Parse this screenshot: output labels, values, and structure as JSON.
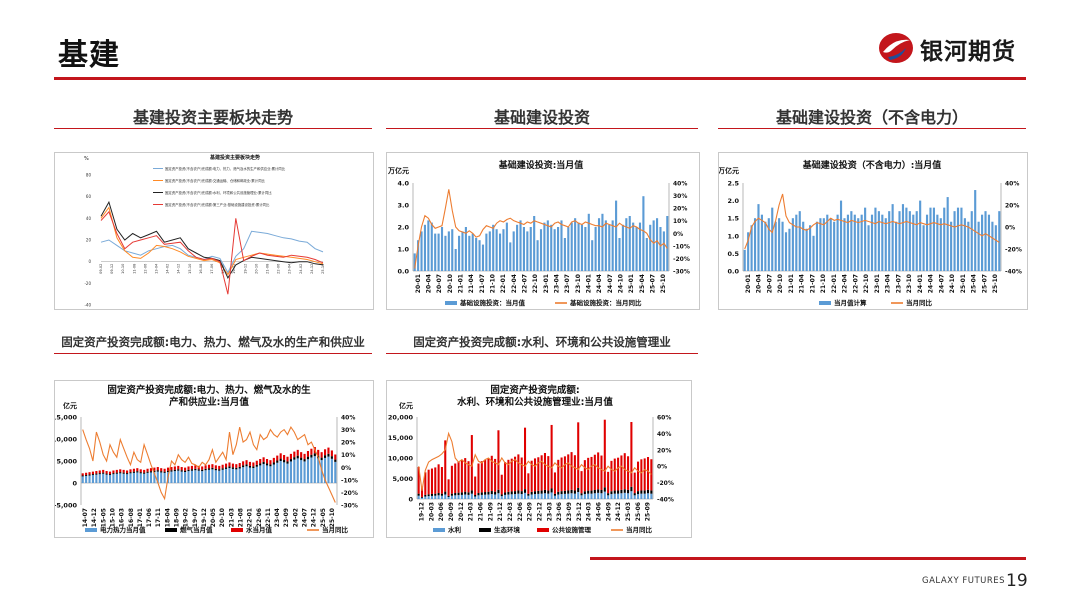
{
  "page": {
    "title": "基建",
    "page_number": "19",
    "footer": "GALAXY FUTURES"
  },
  "logo": {
    "text": "银河期货",
    "brand_color": "#c3161c"
  },
  "sections": [
    {
      "id": "s1",
      "title": "基建投资主要板块走势"
    },
    {
      "id": "s2",
      "title": "基础建设投资"
    },
    {
      "id": "s3",
      "title": "基础建设投资（不含电力）"
    },
    {
      "id": "s4",
      "title": "固定资产投资完成额:电力、热力、燃气及水的生产和供应业"
    },
    {
      "id": "s5",
      "title": "固定资产投资完成额:水利、环境和公共设施管理业"
    }
  ],
  "chart_data": [
    {
      "id": "c1",
      "type": "line",
      "title": "基建投资主要板块走势",
      "ylabel": "%",
      "ylim": [
        -40,
        80
      ],
      "yticks": [
        -40,
        -20,
        0,
        20,
        40,
        60,
        80
      ],
      "x_labels": [
        "09-02",
        "09-12",
        "10-10",
        "11-08",
        "12-06",
        "13-04",
        "14-02",
        "14-12",
        "15-10",
        "16-08",
        "17-06",
        "18-04",
        "19-02",
        "19-12",
        "20-10",
        "21-08",
        "22-06",
        "23-04",
        "24-02",
        "24-12",
        "25-10"
      ],
      "legend": [
        "固定资产投资(不含农户)完成额:电力、热力、燃气及水的生产和供应业:累计同比",
        "固定资产投资(不含农户)完成额:交通运输、仓储和邮政业:累计同比",
        "固定资产投资(不含农户)完成额:水利、环境和公共设施管理业:累计同比",
        "固定资产投资(不含农户)完成额:第三产业:基础设施建设投资:累计同比"
      ],
      "series": [
        {
          "color": "#7aaad8",
          "values": [
            18,
            20,
            15,
            10,
            8,
            6,
            10,
            12,
            14,
            15,
            12,
            6,
            4,
            2,
            5,
            3,
            -10,
            5,
            12,
            28,
            27,
            26,
            24,
            22,
            21,
            19,
            18,
            12,
            9
          ]
        },
        {
          "color": "#ff8a25",
          "values": [
            40,
            50,
            22,
            10,
            4,
            3,
            8,
            15,
            14,
            12,
            9,
            5,
            3,
            1,
            2,
            -1,
            -12,
            2,
            4,
            6,
            8,
            7,
            6,
            5,
            4,
            3,
            2,
            0,
            -2
          ]
        },
        {
          "color": "#222222",
          "values": [
            42,
            55,
            30,
            20,
            26,
            22,
            25,
            28,
            18,
            20,
            22,
            12,
            8,
            4,
            3,
            1,
            -15,
            -3,
            1,
            4,
            3,
            2,
            1,
            0,
            -1,
            0,
            0,
            -2,
            -3
          ]
        },
        {
          "color": "#e53a35",
          "values": [
            38,
            46,
            26,
            12,
            18,
            20,
            22,
            24,
            16,
            17,
            18,
            10,
            4,
            2,
            3,
            0,
            -30,
            40,
            1,
            5,
            8,
            6,
            5,
            4,
            6,
            5,
            4,
            2,
            -1
          ]
        }
      ]
    },
    {
      "id": "c2",
      "type": "bar",
      "title": "基础建设投资:当月值",
      "ylabel": "万亿元",
      "ylim": [
        0,
        4.0
      ],
      "yticks": [
        0.0,
        1.0,
        2.0,
        3.0,
        4.0
      ],
      "y2lim": [
        -30,
        40
      ],
      "y2ticks": [
        "-30%",
        "-20%",
        "-10%",
        "0%",
        "10%",
        "20%",
        "30%",
        "40%"
      ],
      "x_labels": [
        "20-01",
        "20-04",
        "20-07",
        "20-10",
        "21-01",
        "21-04",
        "21-07",
        "21-10",
        "22-01",
        "22-04",
        "22-07",
        "22-10",
        "23-01",
        "23-04",
        "23-07",
        "23-10",
        "24-01",
        "24-04",
        "24-07",
        "24-10",
        "25-01",
        "25-04",
        "25-07",
        "25-10"
      ],
      "legend": [
        "基础设施投资：当月值",
        "基础设施投资：当月同比"
      ],
      "bar_color": "#5b9bd5",
      "line_color": "#ed7d31",
      "values": [
        0.8,
        1.4,
        1.8,
        2.1,
        2.3,
        2.2,
        1.7,
        1.7,
        2.0,
        1.6,
        1.8,
        1.9,
        1.0,
        1.6,
        1.8,
        2.0,
        1.6,
        1.7,
        1.5,
        1.4,
        1.2,
        1.7,
        1.8,
        2.1,
        1.9,
        1.7,
        1.9,
        2.2,
        1.3,
        1.8,
        2.1,
        2.3,
        2.0,
        1.8,
        2.0,
        2.5,
        1.4,
        1.9,
        2.2,
        2.3,
        2.1,
        1.9,
        2.0,
        2.3,
        1.5,
        2.0,
        2.2,
        2.4,
        2.2,
        2.1,
        2.0,
        2.6,
        1.4,
        2.0,
        2.4,
        2.6,
        2.3,
        2.1,
        2.3,
        3.2,
        1.5,
        2.1,
        2.4,
        2.5,
        2.2,
        2.0,
        2.2,
        3.4,
        1.5,
        2.1,
        2.3,
        2.4,
        2.0,
        1.8,
        2.5
      ],
      "yoy": [
        -28,
        -10,
        5,
        14,
        12,
        7,
        4,
        5,
        6,
        20,
        35,
        18,
        5,
        2,
        1,
        0,
        2,
        0,
        -3,
        -2,
        3,
        6,
        5,
        4,
        8,
        10,
        9,
        11,
        12,
        10,
        9,
        8,
        7,
        9,
        8,
        10,
        9,
        8,
        7,
        6,
        5,
        8,
        9,
        7,
        6,
        5,
        9,
        10,
        8,
        7,
        9,
        8,
        7,
        6,
        6,
        5,
        8,
        7,
        6,
        5,
        8,
        6,
        5,
        4,
        6,
        5,
        3,
        2,
        0,
        -5,
        -8,
        -6,
        -10,
        -8,
        -12
      ]
    },
    {
      "id": "c3",
      "type": "bar",
      "title": "基础建设投资（不含电力）:当月值",
      "ylabel": "万亿元",
      "ylim": [
        0,
        2.5
      ],
      "yticks": [
        0.0,
        0.5,
        1.0,
        1.5,
        2.0,
        2.5
      ],
      "y2lim": [
        -40,
        40
      ],
      "y2ticks": [
        "-40%",
        "-20%",
        "0%",
        "20%",
        "40%"
      ],
      "x_labels": [
        "20-01",
        "20-04",
        "20-07",
        "20-10",
        "21-01",
        "21-04",
        "21-07",
        "21-10",
        "22-01",
        "22-04",
        "22-07",
        "22-10",
        "23-01",
        "23-04",
        "23-07",
        "23-10",
        "24-01",
        "24-04",
        "24-07",
        "24-10",
        "25-01",
        "25-04",
        "25-07",
        "25-10"
      ],
      "legend": [
        "当月值计算",
        "当月同比"
      ],
      "bar_color": "#5b9bd5",
      "line_color": "#ed7d31",
      "values": [
        0.6,
        1.1,
        1.3,
        1.5,
        1.9,
        1.6,
        1.4,
        1.5,
        1.8,
        1.4,
        1.5,
        1.4,
        1.1,
        1.2,
        1.5,
        1.6,
        1.7,
        1.4,
        1.2,
        1.3,
        1.0,
        1.4,
        1.5,
        1.5,
        1.6,
        1.5,
        1.4,
        1.6,
        2.0,
        1.5,
        1.6,
        1.7,
        1.6,
        1.5,
        1.6,
        1.8,
        1.3,
        1.6,
        1.8,
        1.7,
        1.6,
        1.5,
        1.7,
        1.9,
        1.4,
        1.7,
        1.9,
        1.8,
        1.7,
        1.6,
        1.7,
        2.0,
        1.3,
        1.6,
        1.8,
        1.8,
        1.6,
        1.5,
        1.8,
        2.1,
        1.4,
        1.7,
        1.8,
        1.8,
        1.5,
        1.4,
        1.7,
        2.3,
        1.4,
        1.6,
        1.7,
        1.6,
        1.4,
        1.3,
        1.7
      ],
      "yoy": [
        -20,
        -12,
        0,
        5,
        8,
        6,
        4,
        -2,
        -5,
        6,
        20,
        30,
        10,
        4,
        2,
        0,
        0,
        -2,
        -3,
        -1,
        2,
        4,
        3,
        2,
        5,
        8,
        6,
        7,
        6,
        5,
        4,
        6,
        5,
        4,
        5,
        6,
        5,
        4,
        3,
        5,
        4,
        3,
        4,
        5,
        4,
        3,
        4,
        5,
        4,
        3,
        2,
        4,
        3,
        2,
        3,
        4,
        3,
        2,
        3,
        2,
        1,
        0,
        1,
        2,
        1,
        0,
        -2,
        -4,
        -6,
        -8,
        -6,
        -8,
        -10,
        -12,
        -14
      ]
    },
    {
      "id": "c4",
      "type": "bar",
      "title": "固定资产投资完成额:电力、热力、燃气及水的生产和供应业:当月值",
      "ylabel": "亿元",
      "ylim": [
        -5000,
        15000
      ],
      "yticks": [
        -5000,
        0,
        5000,
        10000,
        15000
      ],
      "y2lim": [
        -30,
        40
      ],
      "y2ticks": [
        "-30%",
        "-20%",
        "-10%",
        "0%",
        "10%",
        "20%",
        "30%",
        "40%"
      ],
      "x_labels": [
        "14-07",
        "14-12",
        "15-05",
        "15-10",
        "16-03",
        "16-08",
        "17-01",
        "17-06",
        "17-11",
        "18-04",
        "18-09",
        "19-02",
        "19-07",
        "19-12",
        "20-05",
        "20-10",
        "21-03",
        "21-08",
        "22-01",
        "22-06",
        "22-11",
        "23-04",
        "23-09",
        "24-02",
        "24-07",
        "24-12",
        "25-05",
        "25-10"
      ],
      "legend": [
        "电力热力当月值",
        "燃气当月值",
        "水当月值",
        "当月同比"
      ],
      "colors": [
        "#5b9bd5",
        "#000000",
        "#e00000",
        "#ed7d31"
      ],
      "electric": [
        1500,
        1600,
        1700,
        1800,
        1900,
        2000,
        2100,
        1900,
        1800,
        2000,
        2100,
        2200,
        2100,
        2000,
        2200,
        2300,
        2400,
        2200,
        2100,
        2300,
        2400,
        2500,
        2600,
        2400,
        2300,
        2500,
        2600,
        2700,
        2800,
        2600,
        2500,
        2700,
        2800,
        2900,
        2800,
        2700,
        2900,
        3000,
        3100,
        2900,
        2800,
        3000,
        3200,
        3400,
        3200,
        3100,
        3300,
        3600,
        3800,
        3500,
        3400,
        3700,
        4000,
        4300,
        4000,
        3800,
        4200,
        4600,
        5000,
        4700,
        4400,
        4900,
        5300,
        5600,
        5200,
        4900,
        5400,
        5800,
        6100,
        5600,
        5200,
        5700,
        6000,
        5500,
        4800
      ],
      "gas": [
        200,
        210,
        220,
        230,
        240,
        250,
        260,
        240,
        230,
        250,
        260,
        270,
        260,
        250,
        270,
        280,
        290,
        270,
        260,
        280,
        290,
        300,
        310,
        290,
        280,
        300,
        310,
        320,
        330,
        310,
        300,
        320,
        330,
        340,
        330,
        320,
        340,
        350,
        360,
        340,
        330,
        350,
        370,
        390,
        370,
        360,
        380,
        410,
        430,
        400,
        390,
        420,
        450,
        480,
        450,
        430,
        470,
        510,
        550,
        520,
        490,
        540,
        580,
        610,
        570,
        540,
        590,
        630,
        660,
        610,
        570,
        620,
        650,
        600,
        520
      ],
      "water": [
        500,
        520,
        540,
        560,
        580,
        600,
        620,
        580,
        560,
        600,
        620,
        640,
        620,
        600,
        640,
        660,
        680,
        640,
        620,
        660,
        680,
        700,
        720,
        680,
        660,
        700,
        720,
        740,
        760,
        720,
        700,
        740,
        760,
        780,
        760,
        740,
        780,
        800,
        820,
        780,
        760,
        800,
        840,
        880,
        840,
        820,
        860,
        920,
        960,
        900,
        880,
        940,
        1000,
        1060,
        1000,
        960,
        1040,
        1120,
        1200,
        1140,
        1080,
        1180,
        1260,
        1320,
        1240,
        1180,
        1280,
        1360,
        1420,
        1320,
        1240,
        1340,
        1400,
        1300,
        1160
      ],
      "yoy": [
        30,
        22,
        15,
        5,
        28,
        20,
        10,
        5,
        18,
        12,
        8,
        22,
        15,
        8,
        2,
        12,
        6,
        4,
        18,
        10,
        2,
        -5,
        -12,
        -20,
        -25,
        -8,
        5,
        2,
        10,
        6,
        4,
        8,
        3,
        2,
        0,
        4,
        2,
        6,
        14,
        4,
        8,
        12,
        6,
        28,
        10,
        18,
        32,
        20,
        22,
        28,
        18,
        14,
        26,
        22,
        24,
        30,
        26,
        24,
        28,
        30,
        26,
        32,
        28,
        22,
        24,
        26,
        18,
        20,
        14,
        8,
        -2,
        -10,
        -16,
        -22,
        -28
      ]
    },
    {
      "id": "c5",
      "type": "bar",
      "title": "固定资产投资完成额:水利、环境和公共设施管理业:当月值",
      "ylabel": "亿元",
      "ylim": [
        0,
        20000
      ],
      "yticks": [
        0,
        5000,
        10000,
        15000,
        20000
      ],
      "y2lim": [
        -40,
        60
      ],
      "y2ticks": [
        "-40%",
        "-20%",
        "0%",
        "20%",
        "40%",
        "60%"
      ],
      "x_labels": [
        "19-12",
        "20-03",
        "20-06",
        "20-09",
        "20-12",
        "21-03",
        "21-06",
        "21-09",
        "21-12",
        "22-03",
        "22-06",
        "22-09",
        "22-12",
        "23-03",
        "23-06",
        "23-09",
        "23-12",
        "24-03",
        "24-06",
        "24-09",
        "24-12",
        "25-03",
        "25-06",
        "25-09"
      ],
      "legend": [
        "水利",
        "生态环境",
        "公共设施管理",
        "当月同比"
      ],
      "colors": [
        "#5b9bd5",
        "#000000",
        "#e00000",
        "#ed7d31"
      ],
      "water": [
        800,
        300,
        600,
        700,
        750,
        800,
        900,
        800,
        1100,
        500,
        800,
        900,
        950,
        1000,
        1100,
        1000,
        1300,
        600,
        900,
        1000,
        1050,
        1100,
        1200,
        1100,
        1400,
        700,
        1000,
        1100,
        1150,
        1200,
        1300,
        1200,
        1500,
        800,
        1100,
        1200,
        1250,
        1300,
        1400,
        1300,
        1600,
        800,
        1100,
        1200,
        1250,
        1300,
        1400,
        1300,
        1700,
        900,
        1200,
        1300,
        1300,
        1400,
        1500,
        1400,
        1800,
        900,
        1200,
        1300,
        1300,
        1400,
        1500,
        1400,
        1900,
        900,
        1200,
        1300,
        1300,
        1400,
        1300
      ],
      "eco": [
        500,
        200,
        400,
        450,
        480,
        500,
        560,
        500,
        700,
        300,
        500,
        560,
        600,
        620,
        680,
        620,
        800,
        380,
        560,
        620,
        650,
        680,
        740,
        680,
        860,
        420,
        600,
        660,
        690,
        720,
        780,
        720,
        900,
        460,
        640,
        700,
        730,
        760,
        820,
        760,
        960,
        480,
        660,
        720,
        750,
        780,
        840,
        780,
        1000,
        500,
        680,
        740,
        760,
        800,
        860,
        800,
        1040,
        520,
        700,
        760,
        780,
        820,
        880,
        820,
        1080,
        540,
        720,
        780,
        800,
        840,
        800
      ],
      "public": [
        6500,
        2500,
        5500,
        6000,
        6200,
        6400,
        7000,
        6500,
        12500,
        4000,
        6800,
        7200,
        7500,
        7800,
        8200,
        7600,
        13500,
        4500,
        7200,
        7600,
        7800,
        8200,
        8600,
        8000,
        14500,
        4800,
        7400,
        7800,
        8000,
        8400,
        8800,
        8200,
        15000,
        5000,
        7600,
        8000,
        8200,
        8600,
        9000,
        8400,
        15500,
        5200,
        7800,
        8200,
        8400,
        8800,
        9200,
        8600,
        16000,
        5400,
        7600,
        8000,
        8200,
        8600,
        9000,
        8400,
        16500,
        5200,
        7400,
        7800,
        8000,
        8400,
        8800,
        8200,
        15800,
        5000,
        7200,
        7600,
        7800,
        8000,
        7600
      ],
      "yoy": [
        0,
        -30,
        -5,
        5,
        8,
        10,
        12,
        15,
        20,
        40,
        30,
        10,
        5,
        8,
        4,
        2,
        0,
        14,
        6,
        4,
        8,
        10,
        6,
        4,
        2,
        10,
        4,
        2,
        6,
        8,
        4,
        2,
        0,
        6,
        2,
        0,
        4,
        6,
        2,
        0,
        -2,
        4,
        0,
        -2,
        2,
        4,
        0,
        -2,
        -4,
        2,
        -2,
        -4,
        0,
        2,
        -2,
        -4,
        -6,
        0,
        -4,
        -6,
        -2,
        0,
        -4,
        -6,
        -8,
        -2,
        -6,
        -8,
        -4,
        -6,
        -10
      ]
    }
  ]
}
